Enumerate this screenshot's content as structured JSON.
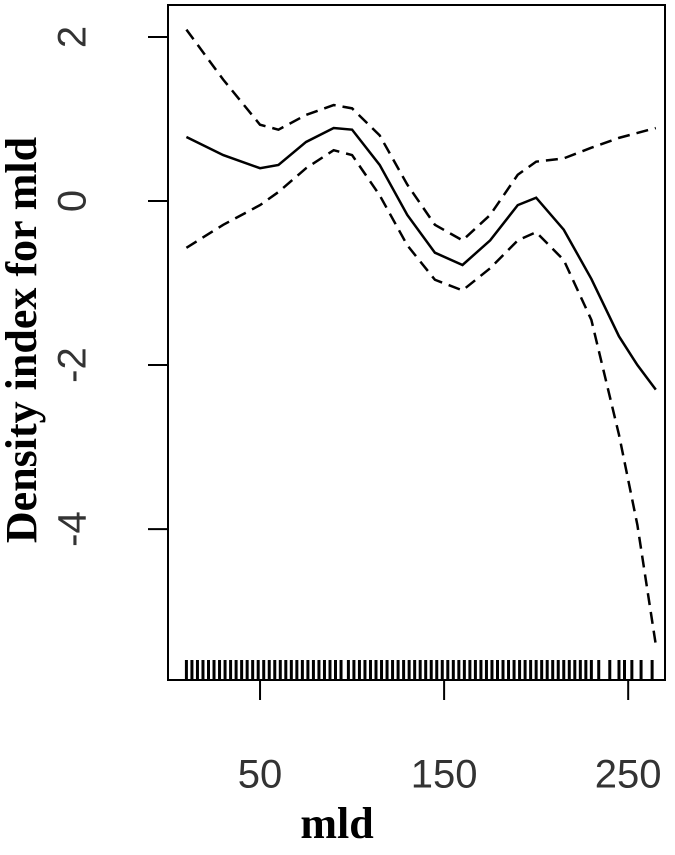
{
  "chart_data": {
    "type": "line",
    "xlabel": "mld",
    "ylabel": "Density index for mld",
    "x": [
      10,
      30,
      50,
      60,
      75,
      90,
      100,
      115,
      130,
      145,
      160,
      175,
      190,
      200,
      215,
      230,
      245,
      255,
      265
    ],
    "series": [
      {
        "color": "#000000",
        "dashed": false,
        "values": [
          0.78,
          0.56,
          0.4,
          0.44,
          0.72,
          0.89,
          0.87,
          0.44,
          -0.17,
          -0.63,
          -0.78,
          -0.48,
          -0.05,
          0.04,
          -0.35,
          -0.95,
          -1.65,
          -2.0,
          -2.3
        ]
      },
      {
        "color": "#000000",
        "dashed": true,
        "values": [
          2.09,
          1.48,
          0.93,
          0.87,
          1.05,
          1.17,
          1.13,
          0.8,
          0.2,
          -0.29,
          -0.48,
          -0.17,
          0.32,
          0.48,
          0.52,
          0.65,
          0.77,
          0.83,
          0.89
        ]
      },
      {
        "color": "#000000",
        "dashed": true,
        "values": [
          -0.57,
          -0.29,
          -0.05,
          0.11,
          0.4,
          0.62,
          0.56,
          0.07,
          -0.54,
          -0.96,
          -1.09,
          -0.82,
          -0.48,
          -0.38,
          -0.72,
          -1.45,
          -2.85,
          -3.95,
          -5.41
        ]
      }
    ],
    "rug": [
      10,
      13,
      16,
      19,
      22,
      25,
      28,
      31,
      34,
      37,
      40,
      43,
      46,
      49,
      52,
      55,
      58,
      61,
      64,
      67,
      70,
      73,
      76,
      79,
      82,
      85,
      88,
      91,
      94,
      98,
      101,
      104,
      107,
      110,
      113,
      116,
      119,
      122,
      125,
      128,
      131,
      134,
      137,
      140,
      143,
      146,
      149,
      152,
      155,
      158,
      161,
      164,
      167,
      170,
      173,
      176,
      179,
      182,
      185,
      188,
      191,
      194,
      197,
      200,
      203,
      206,
      209,
      212,
      215,
      218,
      221,
      224,
      227,
      230,
      234,
      240,
      245,
      248,
      252,
      257,
      263
    ],
    "xlim": [
      0,
      270
    ],
    "ylim": [
      -5.84,
      2.39
    ],
    "xticks": [
      50,
      150,
      250
    ],
    "yticks": [
      2,
      0,
      -2,
      -4
    ]
  }
}
